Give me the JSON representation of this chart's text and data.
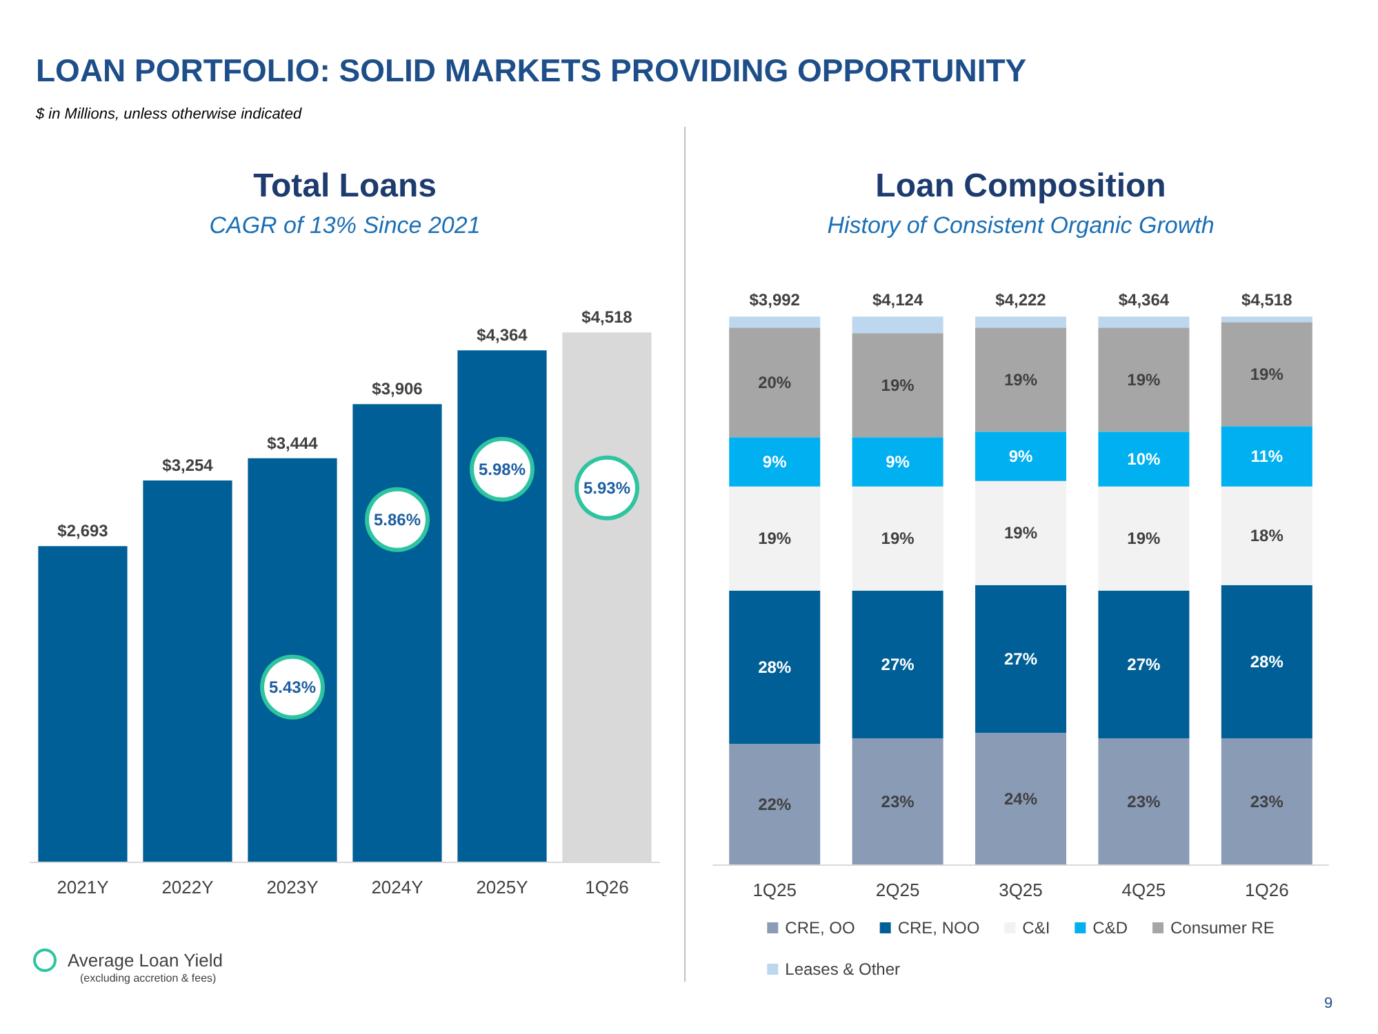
{
  "chart_data": [
    {
      "type": "bar",
      "title": "Total Loans",
      "subtitle": "CAGR of 13% Since 2021",
      "categories": [
        "2021Y",
        "2022Y",
        "2023Y",
        "2024Y",
        "2025Y",
        "1Q26"
      ],
      "values": [
        2693,
        3254,
        3444,
        3906,
        4364,
        4518
      ],
      "colors": [
        "#005f96",
        "#005f96",
        "#005f96",
        "#005f96",
        "#005f96",
        "#d9d9d9"
      ],
      "value_labels": [
        "$2,693",
        "$3,254",
        "$3,444",
        "$3,906",
        "$4,364",
        "$4,518"
      ],
      "annotations": [
        "LOAN PORTFOLIO: SOLID MARKETS PROVIDING OPPORTUNITY",
        "$ in Millions, unless otherwise indicated",
        {
          "text": "5.43%",
          "x": "2023Y",
          "y": 1490
        },
        {
          "text": "5.86%",
          "x": "2024Y",
          "y": 2920
        },
        {
          "text": "5.98%",
          "x": "2025Y",
          "y": 3350
        },
        {
          "text": "5.93%",
          "x": "1Q26",
          "y": 3190
        },
        "Average Loan Yield",
        "(excluding accretion & fees)"
      ]
    },
    {
      "type": "bar",
      "title": "Loan Composition",
      "subtitle": "History of Consistent Organic Growth",
      "stacked": true,
      "legend": "bottom",
      "categories": [
        "1Q25",
        "2Q25",
        "3Q25",
        "4Q25",
        "1Q26"
      ],
      "series": [
        {
          "name": "CRE, OO",
          "color": "#8a9bb6",
          "values": [
            22,
            23,
            24,
            23,
            23
          ],
          "value_labels": [
            "22%",
            "23%",
            "24%",
            "23%",
            "23%"
          ]
        },
        {
          "name": "CRE, NOO",
          "color": "#005f96",
          "values": [
            28,
            27,
            27,
            27,
            28
          ],
          "value_labels": [
            "28%",
            "27%",
            "27%",
            "27%",
            "28%"
          ]
        },
        {
          "name": "C&I",
          "color": "#f2f2f2",
          "values": [
            19,
            19,
            19,
            19,
            18
          ],
          "value_labels": [
            "19%",
            "19%",
            "19%",
            "19%",
            "18%"
          ]
        },
        {
          "name": "C&D",
          "color": "#00b0f0",
          "values": [
            9,
            9,
            9,
            10,
            11
          ],
          "value_labels": [
            "9%",
            "9%",
            "9%",
            "10%",
            "11%"
          ]
        },
        {
          "name": "Consumer RE",
          "color": "#a6a6a6",
          "values": [
            20,
            19,
            19,
            19,
            19
          ],
          "value_labels": [
            "20%",
            "19%",
            "19%",
            "19%",
            "19%"
          ]
        },
        {
          "name": "Leases & Other",
          "color": "#bdd7ee",
          "values": [
            2,
            3,
            2,
            2,
            1
          ]
        }
      ],
      "annotations": [
        {
          "text": "$3,992",
          "x": "1Q25",
          "y": 100
        },
        {
          "text": "$4,124",
          "x": "2Q25",
          "y": 100
        },
        {
          "text": "$4,222",
          "x": "3Q25",
          "y": 100
        },
        {
          "text": "$4,364",
          "x": "4Q25",
          "y": 100
        },
        {
          "text": "$4,518",
          "x": "1Q26",
          "y": 100
        },
        "9"
      ]
    }
  ]
}
